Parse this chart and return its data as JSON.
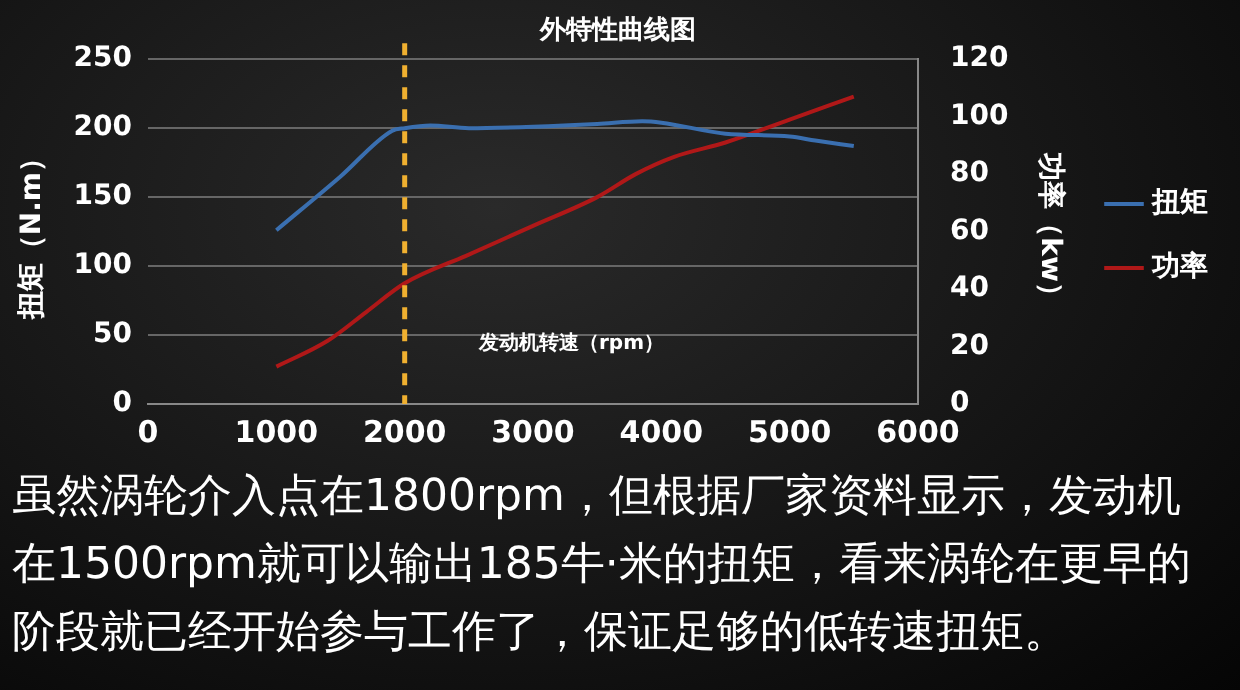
{
  "chart_data": {
    "type": "line",
    "title": "外特性曲线图",
    "xlabel": "发动机转速（rpm）",
    "ylabel": "扭矩（N.m）",
    "y2label": "功率（kw）",
    "xlim": [
      0,
      6000
    ],
    "xticks": [
      0,
      1000,
      2000,
      3000,
      4000,
      5000,
      6000
    ],
    "ylim": [
      0,
      250
    ],
    "yticks": [
      0,
      50,
      100,
      150,
      200,
      250
    ],
    "y2lim": [
      0,
      120
    ],
    "y2ticks": [
      0,
      20,
      40,
      60,
      80,
      100,
      120
    ],
    "grid": "y",
    "legend": "right",
    "marker": "none",
    "line_style": "solid",
    "series": [
      {
        "name": "扭矩",
        "color": "#3a6fb0",
        "x": [
          1000,
          1500,
          1900,
          2000,
          2200,
          2500,
          3000,
          3500,
          3850,
          4000,
          4500,
          5000,
          5200,
          5500
        ],
        "values": [
          126,
          165,
          198,
          200,
          202,
          200,
          201,
          203,
          205,
          204,
          196,
          194,
          191,
          187
        ]
      },
      {
        "name": "功率",
        "color": "#b01818",
        "axis": "y2",
        "x": [
          1000,
          1400,
          1700,
          2000,
          2500,
          3000,
          3500,
          3800,
          4100,
          4500,
          5000,
          5500
        ],
        "values": [
          13,
          22,
          32,
          42,
          52,
          62,
          72,
          80,
          86,
          91,
          99,
          107
        ]
      }
    ],
    "ref_lines": [
      {
        "axis": "x",
        "value": 2000,
        "color": "#f0b030",
        "line_style": "dashed"
      }
    ],
    "annotations": [
      "虽然涡轮介入点在1800rpm，但根据厂家资料显示，发动机在1500rpm就可以输出185牛·米的扭矩，看来涡轮在更早的阶段就已经开始参与工作了，保证足够的低转速扭矩。"
    ]
  }
}
